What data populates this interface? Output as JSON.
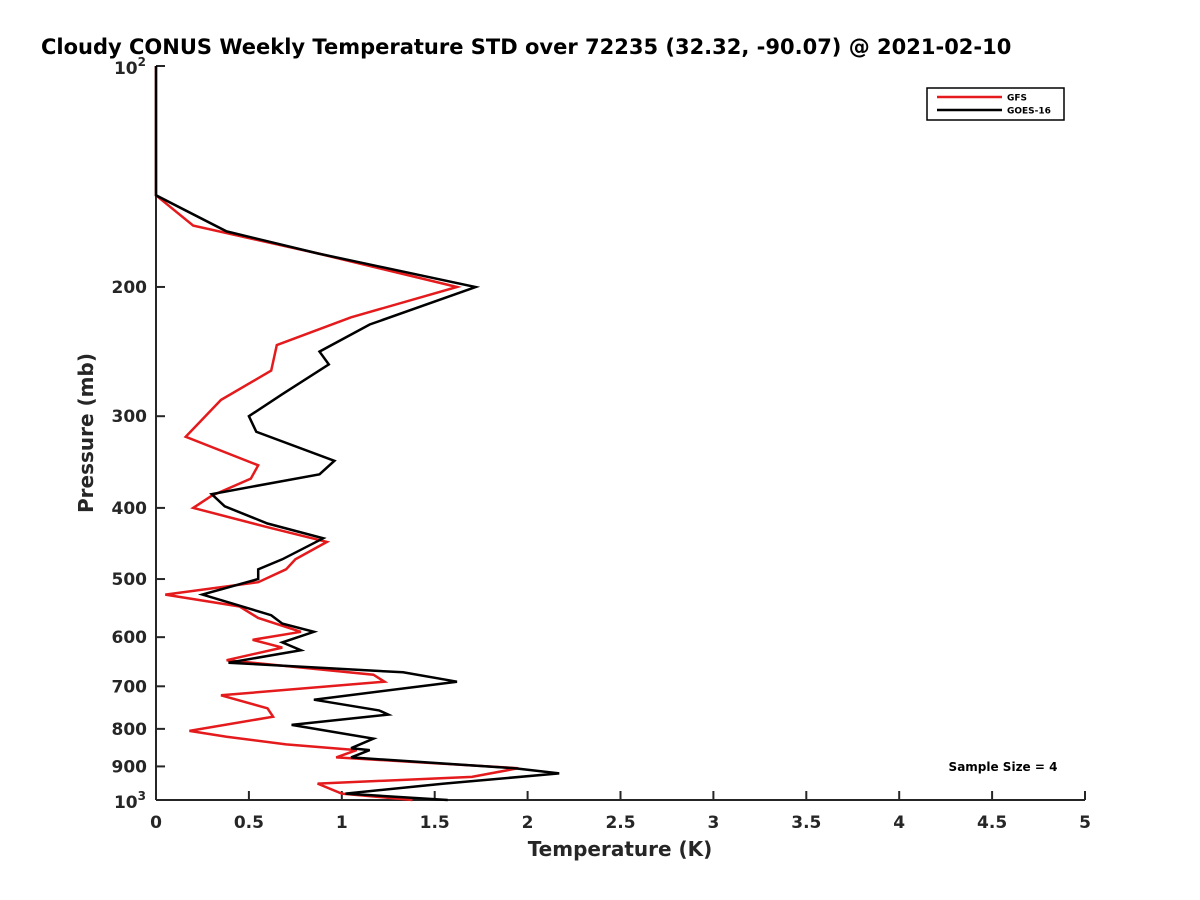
{
  "chart_data": {
    "type": "line",
    "title": "Cloudy CONUS Weekly Temperature STD over 72235 (32.32, -90.07) @ 2021-02-10",
    "xlabel": "Temperature (K)",
    "ylabel": "Pressure (mb)",
    "xlim": [
      0,
      5
    ],
    "ylim": [
      100,
      1000
    ],
    "y_scale": "log",
    "y_reversed": true,
    "x_ticks": [
      0,
      0.5,
      1,
      1.5,
      2,
      2.5,
      3,
      3.5,
      4,
      4.5,
      5
    ],
    "x_tick_labels": [
      "0",
      "0.5",
      "1",
      "1.5",
      "2",
      "2.5",
      "3",
      "3.5",
      "4",
      "4.5",
      "5"
    ],
    "y_ticks": [
      100,
      200,
      300,
      400,
      500,
      600,
      700,
      800,
      900,
      1000
    ],
    "y_tick_labels": [
      {
        "base": "10",
        "sup": "2"
      },
      {
        "base": "200",
        "sup": ""
      },
      {
        "base": "300",
        "sup": ""
      },
      {
        "base": "400",
        "sup": ""
      },
      {
        "base": "500",
        "sup": ""
      },
      {
        "base": "600",
        "sup": ""
      },
      {
        "base": "700",
        "sup": ""
      },
      {
        "base": "800",
        "sup": ""
      },
      {
        "base": "900",
        "sup": ""
      },
      {
        "base": "10",
        "sup": "3"
      }
    ],
    "grid": false,
    "legend_position": "top-right",
    "annotation": "Sample Size = 4",
    "series": [
      {
        "name": "GFS",
        "color": "#e41a1c",
        "points": [
          [
            0,
            100
          ],
          [
            0,
            150
          ],
          [
            0.2,
            165
          ],
          [
            0.87,
            180
          ],
          [
            1.62,
            200
          ],
          [
            1.05,
            220
          ],
          [
            0.65,
            240
          ],
          [
            0.62,
            260
          ],
          [
            0.35,
            285
          ],
          [
            0.16,
            320
          ],
          [
            0.55,
            350
          ],
          [
            0.51,
            365
          ],
          [
            0.3,
            385
          ],
          [
            0.2,
            400
          ],
          [
            0.6,
            425
          ],
          [
            0.92,
            445
          ],
          [
            0.75,
            470
          ],
          [
            0.7,
            485
          ],
          [
            0.55,
            505
          ],
          [
            0.05,
            525
          ],
          [
            0.45,
            545
          ],
          [
            0.55,
            565
          ],
          [
            0.78,
            590
          ],
          [
            0.52,
            605
          ],
          [
            0.68,
            620
          ],
          [
            0.38,
            645
          ],
          [
            1.17,
            675
          ],
          [
            1.23,
            690
          ],
          [
            0.35,
            720
          ],
          [
            0.6,
            750
          ],
          [
            0.63,
            770
          ],
          [
            0.18,
            805
          ],
          [
            0.38,
            820
          ],
          [
            0.7,
            840
          ],
          [
            1.08,
            855
          ],
          [
            0.97,
            875
          ],
          [
            1.95,
            905
          ],
          [
            1.7,
            930
          ],
          [
            0.87,
            950
          ],
          [
            1.0,
            980
          ],
          [
            1.38,
            1000
          ]
        ]
      },
      {
        "name": "GOES-16",
        "color": "#000000",
        "points": [
          [
            0,
            100
          ],
          [
            0,
            150
          ],
          [
            0.38,
            168
          ],
          [
            0.87,
            180
          ],
          [
            1.72,
            200
          ],
          [
            1.15,
            225
          ],
          [
            0.88,
            245
          ],
          [
            0.93,
            255
          ],
          [
            0.68,
            280
          ],
          [
            0.5,
            300
          ],
          [
            0.54,
            315
          ],
          [
            0.96,
            345
          ],
          [
            0.88,
            360
          ],
          [
            0.3,
            383
          ],
          [
            0.37,
            398
          ],
          [
            0.6,
            420
          ],
          [
            0.9,
            440
          ],
          [
            0.68,
            470
          ],
          [
            0.55,
            485
          ],
          [
            0.55,
            500
          ],
          [
            0.25,
            525
          ],
          [
            0.62,
            560
          ],
          [
            0.68,
            575
          ],
          [
            0.85,
            590
          ],
          [
            0.68,
            610
          ],
          [
            0.78,
            625
          ],
          [
            0.39,
            650
          ],
          [
            1.33,
            670
          ],
          [
            1.62,
            690
          ],
          [
            0.85,
            730
          ],
          [
            1.2,
            755
          ],
          [
            1.25,
            765
          ],
          [
            0.73,
            790
          ],
          [
            1.17,
            825
          ],
          [
            1.05,
            850
          ],
          [
            1.15,
            855
          ],
          [
            1.05,
            875
          ],
          [
            1.93,
            905
          ],
          [
            2.17,
            920
          ],
          [
            1.55,
            950
          ],
          [
            1.02,
            980
          ],
          [
            1.57,
            1000
          ]
        ]
      }
    ]
  }
}
